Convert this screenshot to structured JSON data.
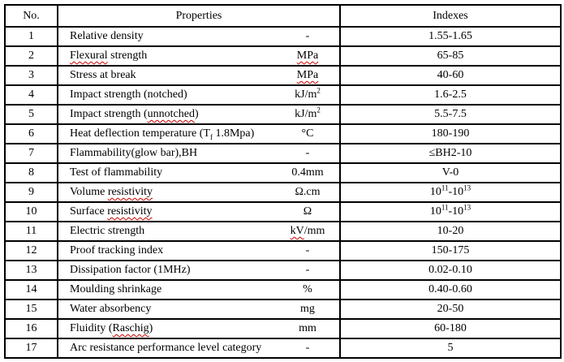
{
  "table": {
    "headers": {
      "no": "No.",
      "properties": "Properties",
      "indexes": "Indexes"
    },
    "squiggle_color": "#cc0000",
    "rows": [
      {
        "no": "1",
        "property": [
          {
            "t": "Relative density"
          }
        ],
        "unit": [
          {
            "t": "-"
          }
        ],
        "index": [
          {
            "t": "1.55-1.65"
          }
        ]
      },
      {
        "no": "2",
        "property": [
          {
            "t": "Flexural",
            "sq": true
          },
          {
            "t": " strength"
          }
        ],
        "unit": [
          {
            "t": "MPa",
            "sq": true
          }
        ],
        "index": [
          {
            "t": "65-85"
          }
        ]
      },
      {
        "no": "3",
        "property": [
          {
            "t": "Stress at break"
          }
        ],
        "unit": [
          {
            "t": "MPa",
            "sq": true
          }
        ],
        "index": [
          {
            "t": "40-60"
          }
        ]
      },
      {
        "no": "4",
        "property": [
          {
            "t": "Impact strength (notched)"
          }
        ],
        "unit": [
          {
            "t": "kJ/m"
          },
          {
            "t": "2",
            "sup": true
          }
        ],
        "index": [
          {
            "t": "1.6-2.5"
          }
        ]
      },
      {
        "no": "5",
        "property": [
          {
            "t": "Impact strength ("
          },
          {
            "t": "unnotched",
            "sq": true
          },
          {
            "t": ")"
          }
        ],
        "unit": [
          {
            "t": "kJ/m"
          },
          {
            "t": "2",
            "sup": true
          }
        ],
        "index": [
          {
            "t": "5.5-7.5"
          }
        ]
      },
      {
        "no": "6",
        "property": [
          {
            "t": "Heat deflection temperature (T"
          },
          {
            "t": "f",
            "sub": true,
            "sq": true
          },
          {
            "t": " 1.8Mpa)"
          }
        ],
        "unit": [
          {
            "t": "°C"
          }
        ],
        "index": [
          {
            "t": "180-190"
          }
        ]
      },
      {
        "no": "7",
        "property": [
          {
            "t": "Flammability(glow bar),BH"
          }
        ],
        "unit": [
          {
            "t": "-"
          }
        ],
        "index": [
          {
            "t": "≤BH2-10"
          }
        ]
      },
      {
        "no": "8",
        "property": [
          {
            "t": "Test of flammability"
          }
        ],
        "unit": [
          {
            "t": "0.4mm"
          }
        ],
        "index": [
          {
            "t": "V-0"
          }
        ]
      },
      {
        "no": "9",
        "property": [
          {
            "t": "Volume "
          },
          {
            "t": "resistivity",
            "sq": true
          }
        ],
        "unit": [
          {
            "t": "Ω.cm"
          }
        ],
        "index": [
          {
            "t": "10"
          },
          {
            "t": "11",
            "sup": true
          },
          {
            "t": "-10"
          },
          {
            "t": "13",
            "sup": true
          }
        ]
      },
      {
        "no": "10",
        "property": [
          {
            "t": "Surface "
          },
          {
            "t": "resistivity",
            "sq": true
          }
        ],
        "unit": [
          {
            "t": "Ω"
          }
        ],
        "index": [
          {
            "t": "10"
          },
          {
            "t": "11",
            "sup": true
          },
          {
            "t": "-10"
          },
          {
            "t": "13",
            "sup": true
          }
        ]
      },
      {
        "no": "11",
        "property": [
          {
            "t": "Electric strength"
          }
        ],
        "unit": [
          {
            "t": "kV",
            "sq": true
          },
          {
            "t": "/mm"
          }
        ],
        "index": [
          {
            "t": "10-20"
          }
        ]
      },
      {
        "no": "12",
        "property": [
          {
            "t": "Proof tracking index"
          }
        ],
        "unit": [
          {
            "t": "-"
          }
        ],
        "index": [
          {
            "t": "150-175"
          }
        ]
      },
      {
        "no": "13",
        "property": [
          {
            "t": "Dissipation factor (1MHz)"
          }
        ],
        "unit": [
          {
            "t": "-"
          }
        ],
        "index": [
          {
            "t": "0.02-0.10"
          }
        ]
      },
      {
        "no": "14",
        "property": [
          {
            "t": "Moulding shrinkage"
          }
        ],
        "unit": [
          {
            "t": "%"
          }
        ],
        "index": [
          {
            "t": "0.40-0.60"
          }
        ]
      },
      {
        "no": "15",
        "property": [
          {
            "t": "Water absorbency"
          }
        ],
        "unit": [
          {
            "t": "mg"
          }
        ],
        "index": [
          {
            "t": "20-50"
          }
        ]
      },
      {
        "no": "16",
        "property": [
          {
            "t": "Fluidity ("
          },
          {
            "t": "Raschig",
            "sq": true
          },
          {
            "t": ")"
          }
        ],
        "unit": [
          {
            "t": "mm"
          }
        ],
        "index": [
          {
            "t": "60-180"
          }
        ]
      },
      {
        "no": "17",
        "property": [
          {
            "t": "Arc resistance performance level category"
          }
        ],
        "unit": [
          {
            "t": "-"
          }
        ],
        "index": [
          {
            "t": "5"
          }
        ]
      }
    ]
  }
}
